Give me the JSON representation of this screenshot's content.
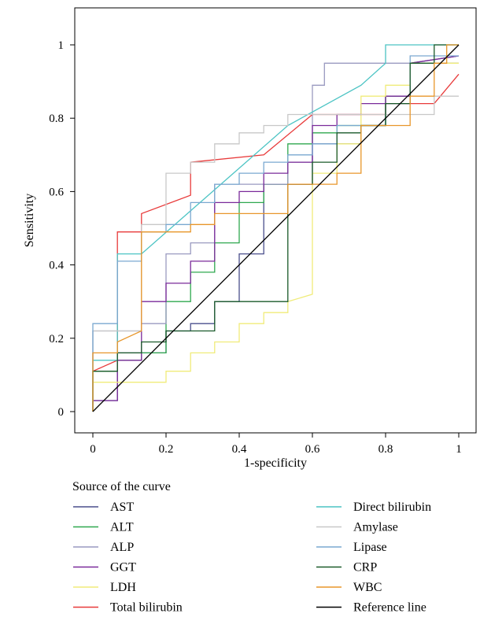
{
  "chart_data": {
    "type": "line",
    "title": "",
    "xlabel": "1-specificity",
    "ylabel": "Sensitivity",
    "xlim": [
      0,
      1
    ],
    "ylim": [
      0,
      1
    ],
    "xticks": [
      0,
      0.2,
      0.4,
      0.6,
      0.8,
      1
    ],
    "xtick_labels": [
      "0",
      "0.2",
      "0.4",
      "0.6",
      "0.8",
      "1"
    ],
    "yticks": [
      0,
      0.2,
      0.4,
      0.6,
      0.8,
      1
    ],
    "ytick_labels": [
      "0",
      "0.2",
      "0.4",
      "0.6",
      "0.8",
      "1"
    ],
    "grid": false,
    "legend_title": "Source of the curve",
    "legend_placement": "bottom, two columns",
    "series": [
      {
        "name": "AST",
        "color": "#4a4f8c",
        "points": [
          [
            0,
            0
          ],
          [
            0,
            0.03
          ],
          [
            0.067,
            0.03
          ],
          [
            0.067,
            0.16
          ],
          [
            0.2,
            0.16
          ],
          [
            0.2,
            0.22
          ],
          [
            0.267,
            0.22
          ],
          [
            0.267,
            0.24
          ],
          [
            0.333,
            0.24
          ],
          [
            0.333,
            0.3
          ],
          [
            0.4,
            0.3
          ],
          [
            0.4,
            0.43
          ],
          [
            0.467,
            0.43
          ],
          [
            0.467,
            0.62
          ],
          [
            0.6,
            0.62
          ],
          [
            0.6,
            0.73
          ],
          [
            0.733,
            0.73
          ],
          [
            0.733,
            0.78
          ],
          [
            0.8,
            0.78
          ],
          [
            0.8,
            0.86
          ],
          [
            0.867,
            0.86
          ],
          [
            0.867,
            0.95
          ],
          [
            1,
            0.97
          ]
        ]
      },
      {
        "name": "ALT",
        "color": "#2fa84f",
        "points": [
          [
            0,
            0
          ],
          [
            0,
            0.11
          ],
          [
            0.067,
            0.11
          ],
          [
            0.067,
            0.14
          ],
          [
            0.133,
            0.14
          ],
          [
            0.133,
            0.16
          ],
          [
            0.2,
            0.16
          ],
          [
            0.2,
            0.3
          ],
          [
            0.267,
            0.3
          ],
          [
            0.267,
            0.38
          ],
          [
            0.333,
            0.38
          ],
          [
            0.333,
            0.46
          ],
          [
            0.4,
            0.46
          ],
          [
            0.4,
            0.57
          ],
          [
            0.467,
            0.57
          ],
          [
            0.467,
            0.62
          ],
          [
            0.533,
            0.62
          ],
          [
            0.533,
            0.73
          ],
          [
            0.6,
            0.73
          ],
          [
            0.6,
            0.76
          ],
          [
            0.667,
            0.76
          ],
          [
            0.667,
            0.78
          ],
          [
            0.8,
            0.78
          ],
          [
            0.8,
            0.86
          ],
          [
            0.867,
            0.86
          ],
          [
            0.867,
            0.95
          ],
          [
            1,
            0.95
          ]
        ]
      },
      {
        "name": "ALP",
        "color": "#9a9ac0",
        "points": [
          [
            0,
            0
          ],
          [
            0,
            0.22
          ],
          [
            0.133,
            0.22
          ],
          [
            0.133,
            0.24
          ],
          [
            0.2,
            0.24
          ],
          [
            0.2,
            0.43
          ],
          [
            0.267,
            0.43
          ],
          [
            0.267,
            0.46
          ],
          [
            0.333,
            0.46
          ],
          [
            0.333,
            0.62
          ],
          [
            0.533,
            0.62
          ],
          [
            0.533,
            0.68
          ],
          [
            0.6,
            0.68
          ],
          [
            0.6,
            0.89
          ],
          [
            0.633,
            0.89
          ],
          [
            0.633,
            0.95
          ],
          [
            0.8,
            0.95
          ],
          [
            1,
            0.95
          ]
        ]
      },
      {
        "name": "GGT",
        "color": "#7a2a9a",
        "points": [
          [
            0,
            0
          ],
          [
            0,
            0.03
          ],
          [
            0.067,
            0.03
          ],
          [
            0.067,
            0.14
          ],
          [
            0.133,
            0.14
          ],
          [
            0.133,
            0.3
          ],
          [
            0.2,
            0.3
          ],
          [
            0.2,
            0.35
          ],
          [
            0.267,
            0.35
          ],
          [
            0.267,
            0.41
          ],
          [
            0.333,
            0.41
          ],
          [
            0.333,
            0.57
          ],
          [
            0.4,
            0.57
          ],
          [
            0.4,
            0.6
          ],
          [
            0.467,
            0.6
          ],
          [
            0.467,
            0.65
          ],
          [
            0.533,
            0.65
          ],
          [
            0.533,
            0.68
          ],
          [
            0.6,
            0.68
          ],
          [
            0.6,
            0.78
          ],
          [
            0.667,
            0.78
          ],
          [
            0.667,
            0.81
          ],
          [
            0.733,
            0.81
          ],
          [
            0.733,
            0.84
          ],
          [
            0.8,
            0.84
          ],
          [
            0.8,
            0.86
          ],
          [
            0.867,
            0.86
          ],
          [
            0.867,
            0.95
          ],
          [
            1,
            0.97
          ]
        ]
      },
      {
        "name": "LDH",
        "color": "#f0ec7a",
        "points": [
          [
            0,
            0
          ],
          [
            0,
            0.08
          ],
          [
            0.2,
            0.08
          ],
          [
            0.2,
            0.11
          ],
          [
            0.267,
            0.11
          ],
          [
            0.267,
            0.16
          ],
          [
            0.333,
            0.16
          ],
          [
            0.333,
            0.19
          ],
          [
            0.4,
            0.19
          ],
          [
            0.4,
            0.24
          ],
          [
            0.467,
            0.24
          ],
          [
            0.467,
            0.27
          ],
          [
            0.533,
            0.27
          ],
          [
            0.533,
            0.3
          ],
          [
            0.6,
            0.32
          ],
          [
            0.6,
            0.65
          ],
          [
            0.667,
            0.65
          ],
          [
            0.667,
            0.73
          ],
          [
            0.733,
            0.73
          ],
          [
            0.733,
            0.86
          ],
          [
            0.8,
            0.86
          ],
          [
            0.8,
            0.89
          ],
          [
            0.867,
            0.89
          ],
          [
            0.867,
            0.95
          ],
          [
            1,
            0.95
          ]
        ]
      },
      {
        "name": "Total bilirubin",
        "color": "#e83a3a",
        "points": [
          [
            0,
            0.11
          ],
          [
            0.067,
            0.14
          ],
          [
            0.067,
            0.49
          ],
          [
            0.133,
            0.49
          ],
          [
            0.133,
            0.54
          ],
          [
            0.267,
            0.59
          ],
          [
            0.267,
            0.68
          ],
          [
            0.467,
            0.7
          ],
          [
            0.6,
            0.81
          ],
          [
            0.8,
            0.81
          ],
          [
            0.8,
            0.84
          ],
          [
            0.933,
            0.84
          ],
          [
            1,
            0.92
          ]
        ]
      },
      {
        "name": "Direct bilirubin",
        "color": "#4cc4c4",
        "points": [
          [
            0,
            0
          ],
          [
            0,
            0.14
          ],
          [
            0.067,
            0.14
          ],
          [
            0.067,
            0.43
          ],
          [
            0.133,
            0.43
          ],
          [
            0.533,
            0.78
          ],
          [
            0.733,
            0.89
          ],
          [
            0.8,
            0.95
          ],
          [
            0.8,
            1
          ],
          [
            1,
            1
          ]
        ]
      },
      {
        "name": "Amylase",
        "color": "#c8c8c8",
        "points": [
          [
            0,
            0
          ],
          [
            0,
            0.22
          ],
          [
            0.133,
            0.22
          ],
          [
            0.133,
            0.51
          ],
          [
            0.2,
            0.51
          ],
          [
            0.2,
            0.65
          ],
          [
            0.267,
            0.65
          ],
          [
            0.267,
            0.68
          ],
          [
            0.333,
            0.68
          ],
          [
            0.333,
            0.73
          ],
          [
            0.4,
            0.73
          ],
          [
            0.4,
            0.76
          ],
          [
            0.467,
            0.76
          ],
          [
            0.467,
            0.78
          ],
          [
            0.533,
            0.78
          ],
          [
            0.533,
            0.81
          ],
          [
            0.933,
            0.81
          ],
          [
            0.933,
            0.86
          ],
          [
            1,
            0.86
          ]
        ]
      },
      {
        "name": "Lipase",
        "color": "#7aa8d0",
        "points": [
          [
            0,
            0
          ],
          [
            0,
            0.24
          ],
          [
            0.067,
            0.24
          ],
          [
            0.067,
            0.41
          ],
          [
            0.133,
            0.41
          ],
          [
            0.133,
            0.49
          ],
          [
            0.2,
            0.49
          ],
          [
            0.2,
            0.51
          ],
          [
            0.267,
            0.51
          ],
          [
            0.267,
            0.57
          ],
          [
            0.333,
            0.57
          ],
          [
            0.333,
            0.62
          ],
          [
            0.4,
            0.62
          ],
          [
            0.4,
            0.65
          ],
          [
            0.467,
            0.65
          ],
          [
            0.467,
            0.68
          ],
          [
            0.533,
            0.68
          ],
          [
            0.533,
            0.7
          ],
          [
            0.6,
            0.7
          ],
          [
            0.6,
            0.73
          ],
          [
            0.667,
            0.73
          ],
          [
            0.667,
            0.78
          ],
          [
            0.8,
            0.78
          ],
          [
            0.8,
            0.84
          ],
          [
            0.867,
            0.84
          ],
          [
            0.867,
            0.97
          ],
          [
            1,
            0.97
          ]
        ]
      },
      {
        "name": "CRP",
        "color": "#1a5a2a",
        "points": [
          [
            0,
            0
          ],
          [
            0,
            0.11
          ],
          [
            0.067,
            0.11
          ],
          [
            0.067,
            0.16
          ],
          [
            0.133,
            0.16
          ],
          [
            0.133,
            0.19
          ],
          [
            0.2,
            0.19
          ],
          [
            0.2,
            0.22
          ],
          [
            0.333,
            0.22
          ],
          [
            0.333,
            0.3
          ],
          [
            0.533,
            0.3
          ],
          [
            0.533,
            0.62
          ],
          [
            0.6,
            0.62
          ],
          [
            0.6,
            0.68
          ],
          [
            0.667,
            0.68
          ],
          [
            0.667,
            0.76
          ],
          [
            0.733,
            0.76
          ],
          [
            0.733,
            0.78
          ],
          [
            0.8,
            0.78
          ],
          [
            0.8,
            0.84
          ],
          [
            0.867,
            0.84
          ],
          [
            0.867,
            0.95
          ],
          [
            0.933,
            0.95
          ],
          [
            0.933,
            1
          ],
          [
            1,
            1
          ]
        ]
      },
      {
        "name": "WBC",
        "color": "#e8962a",
        "points": [
          [
            0,
            0
          ],
          [
            0,
            0.16
          ],
          [
            0.067,
            0.16
          ],
          [
            0.067,
            0.19
          ],
          [
            0.133,
            0.22
          ],
          [
            0.133,
            0.49
          ],
          [
            0.267,
            0.49
          ],
          [
            0.267,
            0.51
          ],
          [
            0.333,
            0.51
          ],
          [
            0.333,
            0.54
          ],
          [
            0.533,
            0.54
          ],
          [
            0.533,
            0.62
          ],
          [
            0.667,
            0.62
          ],
          [
            0.667,
            0.65
          ],
          [
            0.733,
            0.65
          ],
          [
            0.733,
            0.78
          ],
          [
            0.867,
            0.78
          ],
          [
            0.867,
            0.86
          ],
          [
            0.933,
            0.86
          ],
          [
            0.933,
            0.95
          ],
          [
            0.967,
            0.95
          ],
          [
            0.967,
            1
          ],
          [
            1,
            1
          ]
        ]
      },
      {
        "name": "Reference line",
        "color": "#000000",
        "points": [
          [
            0,
            0
          ],
          [
            1,
            1
          ]
        ]
      }
    ]
  }
}
